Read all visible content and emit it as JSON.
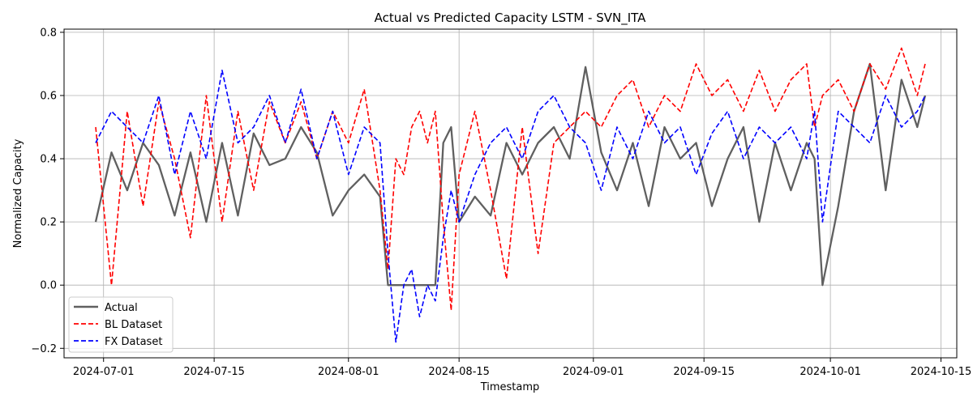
{
  "chart_data": {
    "type": "line",
    "title": "Actual vs Predicted Capacity LSTM - SVN_ITA",
    "xlabel": "Timestamp",
    "ylabel": "Normalized Capacity",
    "xlim": [
      "2024-06-26",
      "2024-10-17"
    ],
    "ylim": [
      -0.23,
      0.81
    ],
    "x_ticks": [
      "2024-07-01",
      "2024-07-15",
      "2024-08-01",
      "2024-08-15",
      "2024-09-01",
      "2024-09-15",
      "2024-10-01",
      "2024-10-15"
    ],
    "y_ticks": [
      -0.2,
      0.0,
      0.2,
      0.4,
      0.6,
      0.8
    ],
    "y_tick_labels": [
      "−0.2",
      "0.0",
      "0.2",
      "0.4",
      "0.6",
      "0.8"
    ],
    "grid": true,
    "legend_position": "lower-left",
    "x": [
      "2024-06-30",
      "2024-07-02",
      "2024-07-04",
      "2024-07-06",
      "2024-07-08",
      "2024-07-10",
      "2024-07-12",
      "2024-07-14",
      "2024-07-16",
      "2024-07-18",
      "2024-07-20",
      "2024-07-22",
      "2024-07-24",
      "2024-07-26",
      "2024-07-28",
      "2024-07-30",
      "2024-08-01",
      "2024-08-03",
      "2024-08-05",
      "2024-08-06",
      "2024-08-07",
      "2024-08-08",
      "2024-08-09",
      "2024-08-10",
      "2024-08-11",
      "2024-08-12",
      "2024-08-13",
      "2024-08-14",
      "2024-08-15",
      "2024-08-17",
      "2024-08-19",
      "2024-08-21",
      "2024-08-23",
      "2024-08-25",
      "2024-08-27",
      "2024-08-29",
      "2024-08-31",
      "2024-09-02",
      "2024-09-04",
      "2024-09-06",
      "2024-09-08",
      "2024-09-10",
      "2024-09-12",
      "2024-09-14",
      "2024-09-16",
      "2024-09-18",
      "2024-09-20",
      "2024-09-22",
      "2024-09-24",
      "2024-09-26",
      "2024-09-28",
      "2024-09-29",
      "2024-09-30",
      "2024-10-02",
      "2024-10-04",
      "2024-10-06",
      "2024-10-08",
      "2024-10-10",
      "2024-10-12",
      "2024-10-13"
    ],
    "series": [
      {
        "name": "Actual",
        "color": "#606060",
        "style": "solid",
        "values": [
          0.2,
          0.42,
          0.3,
          0.45,
          0.38,
          0.22,
          0.42,
          0.2,
          0.45,
          0.22,
          0.48,
          0.38,
          0.4,
          0.5,
          0.42,
          0.22,
          0.3,
          0.35,
          0.28,
          0.0,
          0.0,
          0.0,
          0.0,
          0.0,
          0.0,
          0.0,
          0.45,
          0.5,
          0.2,
          0.28,
          0.22,
          0.45,
          0.35,
          0.45,
          0.5,
          0.4,
          0.69,
          0.42,
          0.3,
          0.45,
          0.25,
          0.5,
          0.4,
          0.45,
          0.25,
          0.4,
          0.5,
          0.2,
          0.45,
          0.3,
          0.45,
          0.4,
          0.0,
          0.25,
          0.55,
          0.7,
          0.3,
          0.65,
          0.5,
          0.6
        ]
      },
      {
        "name": "BL Dataset",
        "color": "#ff0000",
        "style": "dashed",
        "values": [
          0.5,
          0.0,
          0.55,
          0.25,
          0.58,
          0.4,
          0.15,
          0.6,
          0.2,
          0.55,
          0.3,
          0.58,
          0.45,
          0.58,
          0.4,
          0.55,
          0.45,
          0.62,
          0.3,
          0.05,
          0.4,
          0.35,
          0.5,
          0.55,
          0.45,
          0.55,
          0.2,
          -0.08,
          0.35,
          0.55,
          0.3,
          0.02,
          0.5,
          0.1,
          0.45,
          0.5,
          0.55,
          0.5,
          0.6,
          0.65,
          0.5,
          0.6,
          0.55,
          0.7,
          0.6,
          0.65,
          0.55,
          0.68,
          0.55,
          0.65,
          0.7,
          0.5,
          0.6,
          0.65,
          0.55,
          0.7,
          0.62,
          0.75,
          0.6,
          0.7
        ]
      },
      {
        "name": "FX Dataset",
        "color": "#0000ff",
        "style": "dashed",
        "values": [
          0.45,
          0.55,
          0.5,
          0.45,
          0.6,
          0.35,
          0.55,
          0.4,
          0.68,
          0.45,
          0.5,
          0.6,
          0.45,
          0.62,
          0.4,
          0.55,
          0.35,
          0.5,
          0.45,
          0.1,
          -0.18,
          0.0,
          0.05,
          -0.1,
          0.0,
          -0.05,
          0.15,
          0.3,
          0.2,
          0.35,
          0.45,
          0.5,
          0.4,
          0.55,
          0.6,
          0.5,
          0.45,
          0.3,
          0.5,
          0.4,
          0.55,
          0.45,
          0.5,
          0.35,
          0.48,
          0.55,
          0.4,
          0.5,
          0.45,
          0.5,
          0.4,
          0.55,
          0.2,
          0.55,
          0.5,
          0.45,
          0.6,
          0.5,
          0.55,
          0.6
        ]
      }
    ]
  }
}
